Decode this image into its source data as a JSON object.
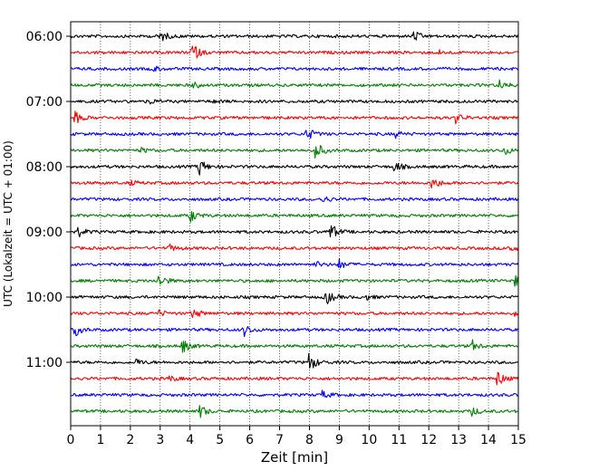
{
  "chart_data": {
    "type": "line",
    "title": "",
    "xlabel": "Zeit  [min]",
    "ylabel": "UTC (Lokalzeit = UTC + 01:00)",
    "xlim": [
      0,
      15
    ],
    "x_ticks": [
      0,
      1,
      2,
      3,
      4,
      5,
      6,
      7,
      8,
      9,
      10,
      11,
      12,
      13,
      14,
      15
    ],
    "x_grid": true,
    "y_ticks": [
      "06:00",
      "07:00",
      "08:00",
      "09:00",
      "10:00",
      "11:00"
    ],
    "trace_interval_min": 15,
    "trace_colors": [
      "#000000",
      "#ff0000",
      "#0000ff",
      "#008000"
    ],
    "traces": [
      {
        "start": "06:00",
        "events": [
          {
            "t": 3.0,
            "a": 1.0
          },
          {
            "t": 11.5,
            "a": 0.9
          }
        ]
      },
      {
        "start": "06:15",
        "events": [
          {
            "t": 4.05,
            "a": 1.9
          },
          {
            "t": 12.3,
            "a": 0.4
          }
        ]
      },
      {
        "start": "06:30",
        "events": [
          {
            "t": 2.75,
            "a": 0.5
          }
        ]
      },
      {
        "start": "06:45",
        "events": [
          {
            "t": 4.1,
            "a": 0.5
          },
          {
            "t": 14.35,
            "a": 0.9
          }
        ]
      },
      {
        "start": "07:00",
        "events": [
          {
            "t": 2.6,
            "a": 0.5
          },
          {
            "t": 4.8,
            "a": 0.3
          }
        ]
      },
      {
        "start": "07:15",
        "events": [
          {
            "t": 0.15,
            "a": 1.0
          },
          {
            "t": 12.9,
            "a": 0.8
          }
        ]
      },
      {
        "start": "07:30",
        "events": [
          {
            "t": 7.9,
            "a": 1.3
          },
          {
            "t": 10.9,
            "a": 0.5
          }
        ]
      },
      {
        "start": "07:45",
        "events": [
          {
            "t": 8.2,
            "a": 1.6
          },
          {
            "t": 2.35,
            "a": 0.4
          },
          {
            "t": 14.5,
            "a": 0.8
          }
        ]
      },
      {
        "start": "08:00",
        "events": [
          {
            "t": 4.3,
            "a": 1.5
          },
          {
            "t": 10.85,
            "a": 0.9
          }
        ]
      },
      {
        "start": "08:15",
        "events": [
          {
            "t": 12.1,
            "a": 1.3
          },
          {
            "t": 2.0,
            "a": 0.4
          }
        ]
      },
      {
        "start": "08:30",
        "events": [
          {
            "t": 8.45,
            "a": 0.6
          }
        ]
      },
      {
        "start": "08:45",
        "events": [
          {
            "t": 4.0,
            "a": 1.1
          }
        ]
      },
      {
        "start": "09:00",
        "events": [
          {
            "t": 0.25,
            "a": 0.8
          },
          {
            "t": 8.7,
            "a": 1.5
          }
        ]
      },
      {
        "start": "09:15",
        "events": [
          {
            "t": 3.3,
            "a": 0.6
          },
          {
            "t": 14.7,
            "a": 0.7
          }
        ]
      },
      {
        "start": "09:30",
        "events": [
          {
            "t": 8.2,
            "a": 0.5
          },
          {
            "t": 9.0,
            "a": 0.8
          }
        ]
      },
      {
        "start": "09:45",
        "events": [
          {
            "t": 2.95,
            "a": 1.2
          },
          {
            "t": 14.9,
            "a": 0.8
          }
        ]
      },
      {
        "start": "10:00",
        "events": [
          {
            "t": 8.55,
            "a": 1.4
          },
          {
            "t": 9.9,
            "a": 0.4
          }
        ]
      },
      {
        "start": "10:15",
        "events": [
          {
            "t": 2.95,
            "a": 0.5
          },
          {
            "t": 4.1,
            "a": 0.9
          },
          {
            "t": 14.9,
            "a": 0.5
          }
        ]
      },
      {
        "start": "10:30",
        "events": [
          {
            "t": 0.15,
            "a": 1.0
          },
          {
            "t": 5.8,
            "a": 1.1
          }
        ]
      },
      {
        "start": "10:45",
        "events": [
          {
            "t": 3.75,
            "a": 1.2
          },
          {
            "t": 13.45,
            "a": 0.9
          }
        ]
      },
      {
        "start": "11:00",
        "events": [
          {
            "t": 8.0,
            "a": 1.6
          },
          {
            "t": 2.2,
            "a": 0.5
          }
        ]
      },
      {
        "start": "11:15",
        "events": [
          {
            "t": 14.3,
            "a": 1.3
          },
          {
            "t": 3.3,
            "a": 0.5
          }
        ]
      },
      {
        "start": "11:30",
        "events": [
          {
            "t": 8.45,
            "a": 0.6
          }
        ]
      },
      {
        "start": "11:45",
        "events": [
          {
            "t": 4.35,
            "a": 1.0
          },
          {
            "t": 13.45,
            "a": 0.7
          }
        ]
      }
    ]
  }
}
